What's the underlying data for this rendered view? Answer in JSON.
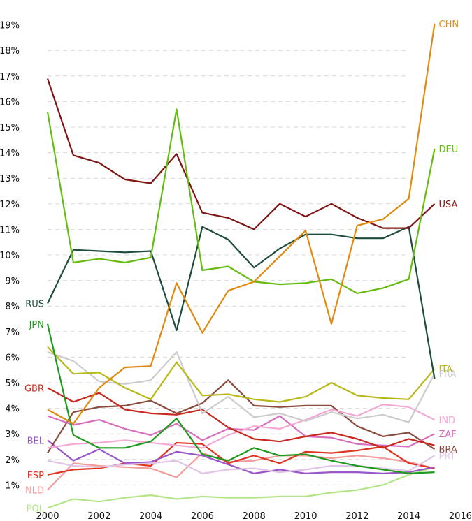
{
  "chart_data": {
    "type": "line",
    "title": "",
    "xlabel": "",
    "ylabel": "",
    "xlim": [
      2000,
      2016
    ],
    "ylim": [
      0,
      19.4
    ],
    "grid": true,
    "x_ticks": [
      "2000",
      "2002",
      "2004",
      "2006",
      "2008",
      "2010",
      "2012",
      "2014",
      "2016"
    ],
    "y_ticks": [
      "1%",
      "2%",
      "3%",
      "4%",
      "5%",
      "6%",
      "7%",
      "8%",
      "9%",
      "10%",
      "11%",
      "12%",
      "13%",
      "14%",
      "15%",
      "16%",
      "17%",
      "18%",
      "19%"
    ],
    "x": [
      2000,
      2001,
      2002,
      2003,
      2004,
      2005,
      2006,
      2007,
      2008,
      2009,
      2010,
      2011,
      2012,
      2013,
      2014,
      2015
    ],
    "series": [
      {
        "name": "CHN",
        "color": "#e08a10",
        "label_side": "right",
        "values": [
          3.95,
          3.4,
          4.8,
          5.6,
          5.65,
          8.9,
          6.95,
          8.6,
          8.95,
          9.95,
          10.95,
          7.3,
          11.15,
          11.4,
          12.2,
          19.05
        ]
      },
      {
        "name": "DEU",
        "color": "#66bb11",
        "label_side": "right",
        "values": [
          15.6,
          9.7,
          9.85,
          9.7,
          9.9,
          15.7,
          9.4,
          9.55,
          8.95,
          8.85,
          8.9,
          9.05,
          8.5,
          8.7,
          9.05,
          14.15
        ]
      },
      {
        "name": "USA",
        "color": "#7f1512",
        "label_side": "right",
        "values": [
          16.9,
          13.9,
          13.6,
          12.95,
          12.8,
          13.95,
          11.65,
          11.45,
          11.0,
          12.0,
          11.5,
          12.0,
          11.45,
          11.05,
          11.05,
          12.0
        ]
      },
      {
        "name": "RUS",
        "color": "#1e4d3a",
        "label_side": "left",
        "values": [
          8.1,
          10.2,
          10.15,
          10.1,
          10.15,
          7.05,
          11.1,
          10.6,
          9.5,
          10.25,
          10.8,
          10.8,
          10.65,
          10.65,
          11.1,
          5.15
        ]
      },
      {
        "name": "JPN",
        "color": "#1f9a1f",
        "label_side": "left",
        "values": [
          7.3,
          2.95,
          2.45,
          2.45,
          2.7,
          3.6,
          2.2,
          1.95,
          2.45,
          2.15,
          2.2,
          1.95,
          1.75,
          1.6,
          1.45,
          1.5
        ]
      },
      {
        "name": "ITA",
        "color": "#b8b818",
        "label_side": "right",
        "values": [
          6.4,
          5.35,
          5.4,
          4.8,
          4.35,
          5.8,
          4.5,
          4.55,
          4.35,
          4.25,
          4.45,
          5.0,
          4.5,
          4.4,
          4.35,
          5.55
        ]
      },
      {
        "name": "FRA",
        "color": "#cccccc",
        "label_side": "right",
        "values": [
          6.2,
          5.85,
          5.05,
          4.95,
          5.1,
          6.2,
          3.8,
          4.45,
          3.65,
          3.8,
          3.5,
          3.85,
          3.6,
          3.75,
          3.45,
          5.35
        ]
      },
      {
        "name": "GBR",
        "color": "#c8281e",
        "label_side": "left",
        "values": [
          4.8,
          4.25,
          4.6,
          3.95,
          3.8,
          3.75,
          3.95,
          3.25,
          2.8,
          2.7,
          2.9,
          3.05,
          2.8,
          2.45,
          2.8,
          2.55
        ]
      },
      {
        "name": "IND",
        "color": "#f5a8d4",
        "label_side": "right",
        "values": [
          2.45,
          2.6,
          2.65,
          2.75,
          2.65,
          2.55,
          2.45,
          2.95,
          3.3,
          3.2,
          3.55,
          3.95,
          3.7,
          4.15,
          4.05,
          3.55
        ]
      },
      {
        "name": "ZAF",
        "color": "#d96ebe",
        "label_side": "right",
        "values": [
          3.7,
          3.35,
          3.55,
          3.2,
          2.95,
          3.4,
          2.75,
          3.2,
          3.15,
          3.7,
          2.9,
          2.85,
          2.6,
          2.55,
          2.5,
          3.0
        ]
      },
      {
        "name": "BRA",
        "color": "#8b4a3e",
        "label_side": "right",
        "values": [
          2.25,
          3.85,
          4.05,
          4.1,
          4.3,
          3.8,
          4.2,
          5.1,
          4.1,
          4.05,
          4.1,
          4.1,
          3.3,
          2.9,
          3.05,
          2.4
        ]
      },
      {
        "name": "PRT",
        "color": "#e0c4e8",
        "label_side": "right",
        "values": [
          1.95,
          1.75,
          1.7,
          1.8,
          1.85,
          1.95,
          1.45,
          1.6,
          1.65,
          1.5,
          1.6,
          1.75,
          1.75,
          1.65,
          1.55,
          2.15
        ]
      },
      {
        "name": "BEL",
        "color": "#9a55c8",
        "label_side": "left",
        "values": [
          2.75,
          1.95,
          2.4,
          1.85,
          1.9,
          2.3,
          2.15,
          1.8,
          1.45,
          1.6,
          1.45,
          1.5,
          1.5,
          1.45,
          1.5,
          1.7
        ]
      },
      {
        "name": "ESP",
        "color": "#e03422",
        "label_side": "left",
        "values": [
          1.4,
          1.6,
          1.65,
          1.85,
          1.75,
          2.65,
          2.6,
          1.85,
          2.15,
          1.85,
          2.3,
          2.25,
          2.35,
          2.5,
          1.85,
          1.65
        ]
      },
      {
        "name": "NLD",
        "color": "#f29c9c",
        "label_side": "left",
        "values": [
          0.8,
          1.85,
          1.75,
          1.7,
          1.65,
          1.3,
          2.25,
          1.9,
          1.95,
          2.15,
          2.15,
          2.05,
          2.15,
          2.05,
          1.9,
          1.65
        ]
      },
      {
        "name": "POL",
        "color": "#b3e588",
        "label_side": "left",
        "values": [
          0.1,
          0.45,
          0.35,
          0.5,
          0.6,
          0.45,
          0.55,
          0.5,
          0.5,
          0.55,
          0.55,
          0.7,
          0.8,
          1.0,
          1.4,
          1.7
        ]
      }
    ]
  }
}
